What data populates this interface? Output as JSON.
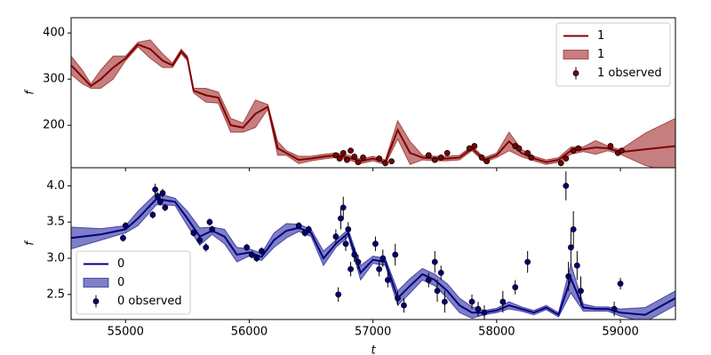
{
  "chart_data": [
    {
      "type": "line",
      "ylabel": "f",
      "legend": "upper right",
      "xlim": [
        54560,
        59445
      ],
      "ylim": [
        108,
        433
      ],
      "yticks": [
        200,
        300,
        400
      ],
      "x": [
        54560,
        54650,
        54720,
        54800,
        54900,
        55000,
        55100,
        55200,
        55300,
        55380,
        55450,
        55500,
        55550,
        55650,
        55750,
        55850,
        55950,
        56050,
        56150,
        56230,
        56300,
        56400,
        56500,
        56600,
        56700,
        56800,
        56900,
        57000,
        57100,
        57200,
        57300,
        57400,
        57500,
        57600,
        57700,
        57800,
        57900,
        58000,
        58100,
        58200,
        58300,
        58400,
        58500,
        58600,
        58700,
        58800,
        58900,
        59000,
        59200,
        59445
      ],
      "series": [
        {
          "name": "1",
          "type": "line",
          "color": "#800000",
          "values": [
            330,
            305,
            285,
            300,
            325,
            345,
            375,
            365,
            340,
            330,
            360,
            345,
            275,
            265,
            260,
            200,
            195,
            225,
            240,
            150,
            140,
            125,
            128,
            132,
            135,
            130,
            122,
            128,
            120,
            190,
            140,
            130,
            128,
            128,
            130,
            150,
            125,
            135,
            165,
            140,
            128,
            120,
            125,
            145,
            148,
            152,
            150,
            142,
            148,
            155
          ]
        },
        {
          "name": "1",
          "type": "band",
          "color": "#8b0000",
          "lower": [
            310,
            290,
            280,
            280,
            300,
            340,
            370,
            345,
            325,
            325,
            355,
            340,
            270,
            250,
            248,
            185,
            185,
            195,
            235,
            135,
            135,
            117,
            123,
            127,
            130,
            125,
            117,
            123,
            115,
            170,
            115,
            125,
            123,
            123,
            125,
            145,
            120,
            130,
            145,
            132,
            123,
            115,
            120,
            137,
            143,
            137,
            145,
            137,
            113,
            95
          ],
          "upper": [
            350,
            320,
            290,
            320,
            350,
            350,
            380,
            385,
            355,
            335,
            365,
            350,
            280,
            280,
            272,
            215,
            205,
            255,
            245,
            165,
            145,
            133,
            133,
            137,
            140,
            135,
            127,
            133,
            125,
            210,
            165,
            135,
            133,
            133,
            135,
            155,
            130,
            140,
            185,
            148,
            133,
            125,
            130,
            153,
            153,
            167,
            155,
            147,
            183,
            215
          ]
        },
        {
          "name": "1 observed",
          "type": "errorbar",
          "color": "#800000",
          "x": [
            56700,
            56730,
            56760,
            56790,
            56820,
            56850,
            56880,
            56920,
            57050,
            57100,
            57150,
            57450,
            57500,
            57550,
            57600,
            57780,
            57820,
            57880,
            57920,
            58150,
            58180,
            58250,
            58280,
            58520,
            58560,
            58620,
            58660,
            58920,
            58980,
            59010
          ],
          "values": [
            135,
            128,
            140,
            125,
            145,
            132,
            120,
            130,
            128,
            118,
            122,
            135,
            125,
            130,
            140,
            150,
            155,
            130,
            122,
            155,
            150,
            140,
            130,
            118,
            128,
            145,
            150,
            155,
            140,
            145
          ],
          "errors": [
            5,
            5,
            5,
            5,
            5,
            5,
            5,
            5,
            5,
            5,
            5,
            5,
            5,
            5,
            5,
            5,
            5,
            5,
            5,
            5,
            5,
            5,
            5,
            5,
            5,
            5,
            5,
            5,
            5,
            5
          ]
        }
      ]
    },
    {
      "type": "line",
      "ylabel": "f",
      "xlabel": "t",
      "legend": "lower left",
      "xlim": [
        54560,
        59445
      ],
      "ylim": [
        2.155,
        4.25
      ],
      "xticks": [
        55000,
        56000,
        57000,
        58000,
        59000
      ],
      "yticks": [
        2.5,
        {
          "value": 3,
          "label": "3.0"
        },
        3.5,
        {
          "value": 4,
          "label": "4.0"
        }
      ],
      "x": [
        54560,
        54800,
        55000,
        55100,
        55250,
        55400,
        55500,
        55600,
        55700,
        55800,
        55900,
        56000,
        56100,
        56200,
        56300,
        56400,
        56500,
        56600,
        56700,
        56800,
        56900,
        57000,
        57100,
        57200,
        57300,
        57400,
        57500,
        57600,
        57700,
        57800,
        57900,
        58000,
        58100,
        58200,
        58300,
        58400,
        58500,
        58600,
        58700,
        58800,
        58900,
        59000,
        59200,
        59445
      ],
      "series": [
        {
          "name": "0",
          "type": "line",
          "color": "#000080",
          "values": [
            3.28,
            3.33,
            3.4,
            3.55,
            3.82,
            3.78,
            3.55,
            3.3,
            3.38,
            3.3,
            3.05,
            3.08,
            3.02,
            3.25,
            3.38,
            3.42,
            3.35,
            3.0,
            3.2,
            3.35,
            2.8,
            2.98,
            2.95,
            2.45,
            2.62,
            2.78,
            2.7,
            2.55,
            2.35,
            2.25,
            2.25,
            2.28,
            2.35,
            2.3,
            2.25,
            2.32,
            2.22,
            2.72,
            2.32,
            2.3,
            2.3,
            2.25,
            2.22,
            2.45
          ]
        },
        {
          "name": "0",
          "type": "band",
          "color": "#00008b",
          "lower": [
            3.13,
            3.25,
            3.35,
            3.45,
            3.74,
            3.73,
            3.45,
            3.18,
            3.33,
            3.2,
            2.95,
            3.03,
            2.97,
            3.15,
            3.28,
            3.37,
            3.3,
            2.9,
            3.15,
            3.3,
            2.7,
            2.93,
            2.9,
            2.35,
            2.52,
            2.7,
            2.62,
            2.45,
            2.25,
            2.17,
            2.22,
            2.25,
            2.3,
            2.27,
            2.22,
            2.29,
            2.19,
            2.52,
            2.27,
            2.27,
            2.27,
            2.2,
            2.12,
            2.35
          ],
          "upper": [
            3.43,
            3.41,
            3.45,
            3.65,
            3.9,
            3.83,
            3.65,
            3.42,
            3.43,
            3.4,
            3.15,
            3.13,
            3.07,
            3.35,
            3.48,
            3.47,
            3.4,
            3.1,
            3.25,
            3.4,
            2.9,
            3.03,
            3.0,
            2.55,
            2.72,
            2.86,
            2.78,
            2.65,
            2.45,
            2.33,
            2.28,
            2.31,
            2.4,
            2.33,
            2.28,
            2.35,
            2.25,
            2.92,
            2.37,
            2.33,
            2.33,
            2.3,
            2.32,
            2.55
          ]
        },
        {
          "name": "0 observed",
          "type": "errorbar",
          "color": "#000080",
          "x": [
            54980,
            55000,
            55220,
            55240,
            55260,
            55280,
            55300,
            55320,
            55550,
            55600,
            55650,
            55680,
            55700,
            55980,
            56020,
            56060,
            56100,
            56400,
            56450,
            56480,
            56700,
            56720,
            56740,
            56760,
            56780,
            56800,
            56820,
            56850,
            56880,
            57020,
            57050,
            57080,
            57120,
            57180,
            57200,
            57250,
            57450,
            57500,
            57520,
            57550,
            57580,
            57800,
            57850,
            57900,
            58050,
            58150,
            58250,
            58560,
            58580,
            58600,
            58620,
            58650,
            58680,
            58950,
            59000
          ],
          "values": [
            3.28,
            3.45,
            3.6,
            3.95,
            3.85,
            3.78,
            3.9,
            3.7,
            3.35,
            3.25,
            3.15,
            3.5,
            3.4,
            3.15,
            3.05,
            3.0,
            3.1,
            3.45,
            3.35,
            3.4,
            3.3,
            2.5,
            3.55,
            3.7,
            3.2,
            3.4,
            2.85,
            3.05,
            2.95,
            3.2,
            2.85,
            3.0,
            2.7,
            3.05,
            2.45,
            2.35,
            2.7,
            2.95,
            2.55,
            2.8,
            2.4,
            2.4,
            2.3,
            2.25,
            2.4,
            2.6,
            2.95,
            4.0,
            2.75,
            3.15,
            3.4,
            2.9,
            2.55,
            2.3,
            2.65
          ],
          "errors": [
            0.05,
            0.05,
            0.05,
            0.08,
            0.06,
            0.05,
            0.06,
            0.05,
            0.05,
            0.06,
            0.06,
            0.05,
            0.05,
            0.05,
            0.05,
            0.05,
            0.05,
            0.05,
            0.05,
            0.05,
            0.1,
            0.1,
            0.15,
            0.15,
            0.1,
            0.1,
            0.1,
            0.1,
            0.1,
            0.1,
            0.1,
            0.12,
            0.1,
            0.15,
            0.1,
            0.1,
            0.1,
            0.15,
            0.15,
            0.1,
            0.15,
            0.1,
            0.1,
            0.1,
            0.15,
            0.1,
            0.15,
            0.2,
            0.2,
            0.25,
            0.25,
            0.2,
            0.2,
            0.1,
            0.08
          ]
        }
      ]
    }
  ]
}
